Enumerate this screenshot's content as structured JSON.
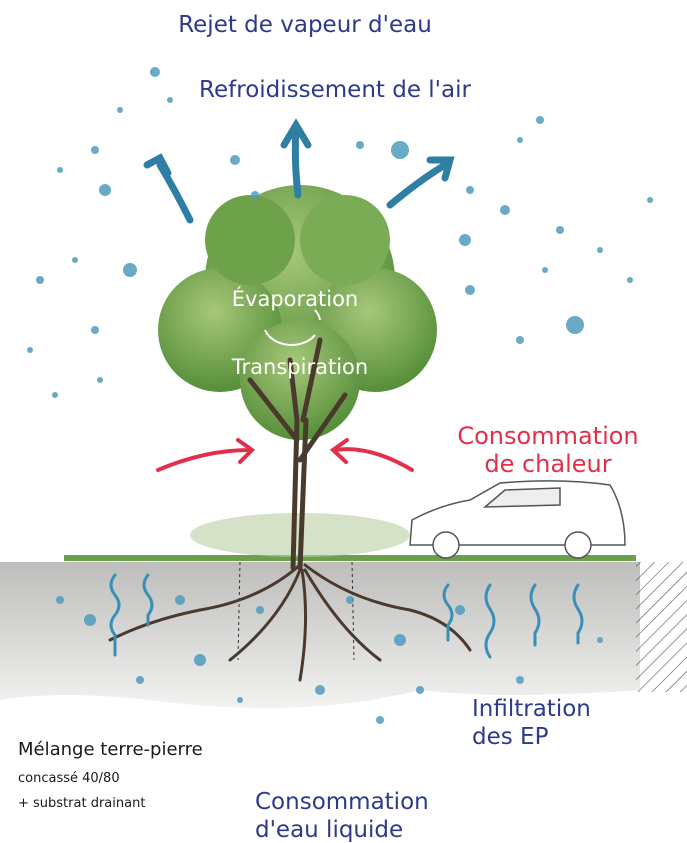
{
  "labels": {
    "vapour": "Rejet de vapeur d'eau",
    "cooling": "Refroidissement de l'air",
    "evaporation": "Évaporation",
    "transpiration": "Transpiration",
    "heat": {
      "lines": [
        "Consommation",
        "de chaleur"
      ]
    },
    "infiltration": {
      "lines": [
        "Infiltration",
        "des EP"
      ]
    },
    "soil": {
      "lines": [
        "Mélange terre-pierre",
        "concassé 40/80",
        "+ substrat drainant"
      ]
    },
    "water": {
      "lines": [
        "Consommation",
        "d'eau liquide"
      ]
    }
  }
}
